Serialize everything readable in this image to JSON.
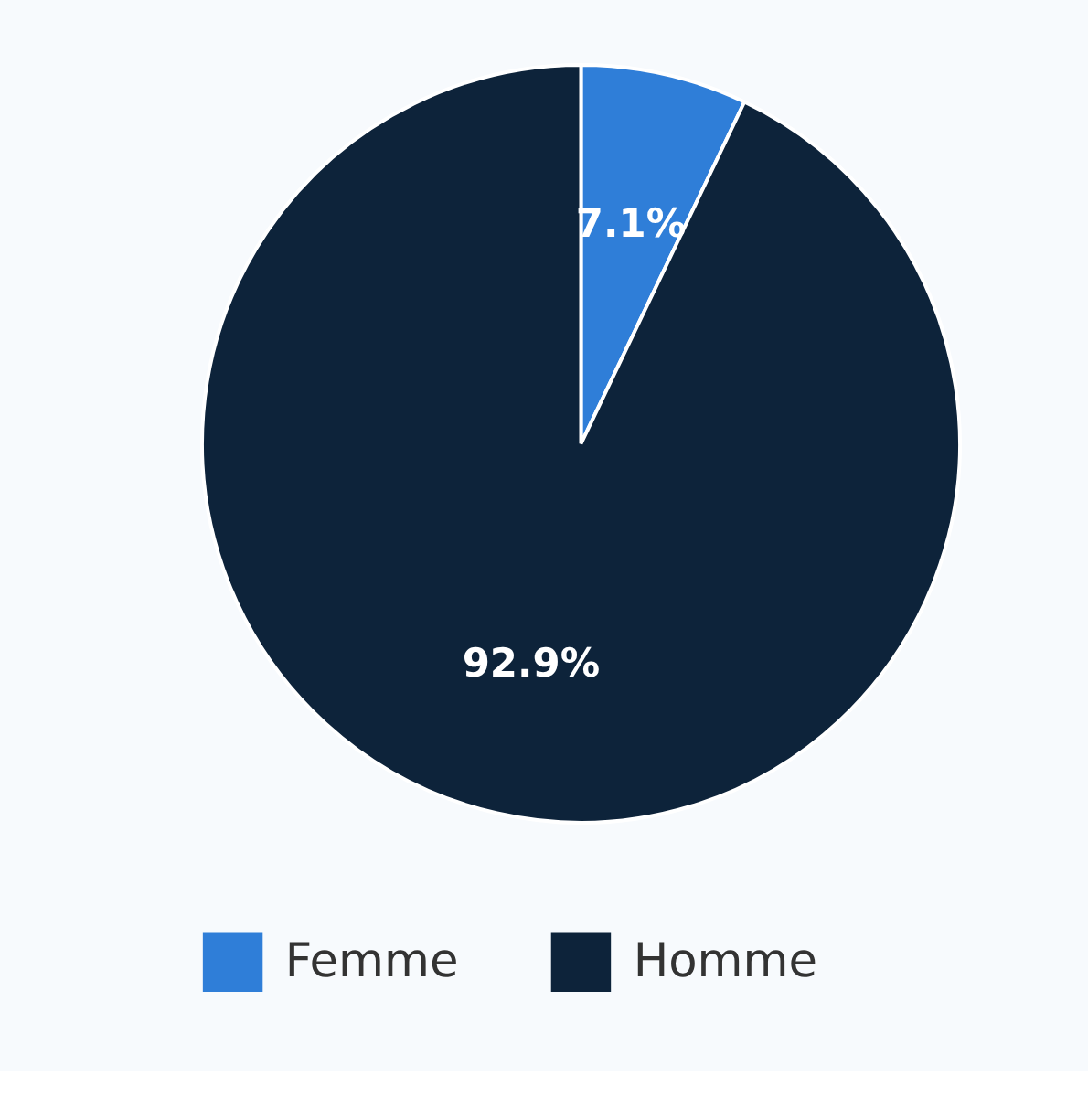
{
  "chart_data": {
    "type": "pie",
    "categories": [
      "Femme",
      "Homme"
    ],
    "values": [
      7.1,
      92.9
    ],
    "colors": [
      "#2f7ed8",
      "#0d233a"
    ],
    "value_labels": [
      "7.1%",
      "92.9%"
    ],
    "legend": "bottom"
  }
}
